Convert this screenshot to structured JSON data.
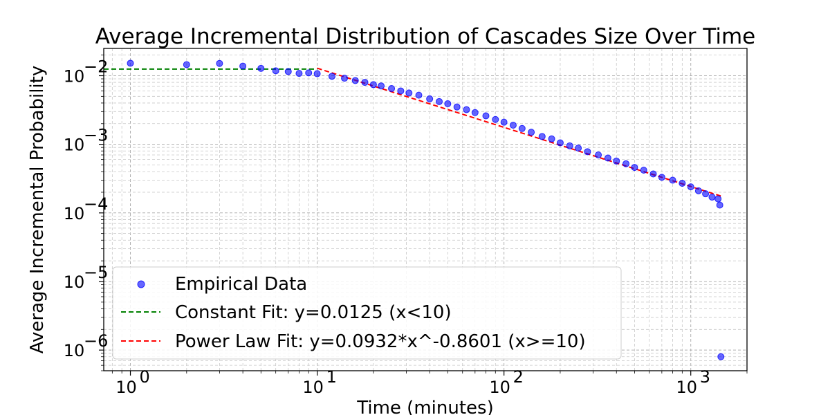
{
  "chart_data": {
    "type": "scatter",
    "title": "Average Incremental Distribution of Cascades Size Over Time",
    "xlabel": "Time (minutes)",
    "ylabel": "Average Incremental Probability",
    "xscale": "log",
    "yscale": "log",
    "xlim": [
      0.72,
      2000
    ],
    "ylim": [
      5e-07,
      0.025
    ],
    "grid": "on (major and minor, dashed)",
    "legend_position": "lower-left",
    "x_ticks": [
      1,
      10,
      100,
      1000
    ],
    "x_tick_labels": [
      "10",
      "10",
      "10",
      "10"
    ],
    "x_tick_exponents": [
      "0",
      "1",
      "2",
      "3"
    ],
    "y_ticks": [
      1e-06,
      1e-05,
      0.0001,
      0.001,
      0.01
    ],
    "y_tick_labels": [
      "10",
      "10",
      "10",
      "10",
      "10"
    ],
    "y_tick_exponents": [
      "−6",
      "−5",
      "−4",
      "−3",
      "−2"
    ],
    "series": [
      {
        "name": "Empirical Data",
        "kind": "scatter",
        "color": "#0000ff",
        "x": [
          1,
          2,
          3,
          4,
          5,
          6,
          7,
          8,
          9,
          10,
          12,
          14,
          16,
          18,
          20,
          22,
          25,
          28,
          31,
          35,
          40,
          45,
          50,
          56,
          63,
          70,
          80,
          90,
          100,
          112,
          125,
          140,
          160,
          180,
          200,
          225,
          250,
          280,
          320,
          360,
          400,
          450,
          500,
          560,
          630,
          700,
          800,
          900,
          1000,
          1100,
          1200,
          1300,
          1400,
          1430,
          1450
        ],
        "y": [
          0.0152,
          0.0145,
          0.0151,
          0.0138,
          0.0128,
          0.0118,
          0.0115,
          0.0108,
          0.011,
          0.0107,
          0.0098,
          0.0092,
          0.0085,
          0.008,
          0.0074,
          0.0071,
          0.0065,
          0.006,
          0.0056,
          0.0052,
          0.0046,
          0.0042,
          0.0039,
          0.0035,
          0.0032,
          0.0029,
          0.0026,
          0.0023,
          0.0021,
          0.0019,
          0.0017,
          0.0015,
          0.0013,
          0.0012,
          0.00105,
          0.00095,
          0.00088,
          0.00078,
          0.0007,
          0.00063,
          0.00057,
          0.00052,
          0.00046,
          0.00042,
          0.00037,
          0.00033,
          0.0003,
          0.00027,
          0.00024,
          0.00021,
          0.00019,
          0.00017,
          0.00016,
          0.00013,
          8e-07
        ]
      },
      {
        "name": "Constant Fit: y=0.0125 (x<10)",
        "kind": "line",
        "color": "#008000",
        "x": [
          0.72,
          10
        ],
        "y": [
          0.0125,
          0.0125
        ]
      },
      {
        "name": "Power Law Fit: y=0.0932*x^-0.8601 (x>=10)",
        "kind": "line",
        "color": "#ff0000",
        "x": [
          10,
          1450
        ],
        "y": [
          0.01287,
          0.000176
        ]
      }
    ]
  }
}
